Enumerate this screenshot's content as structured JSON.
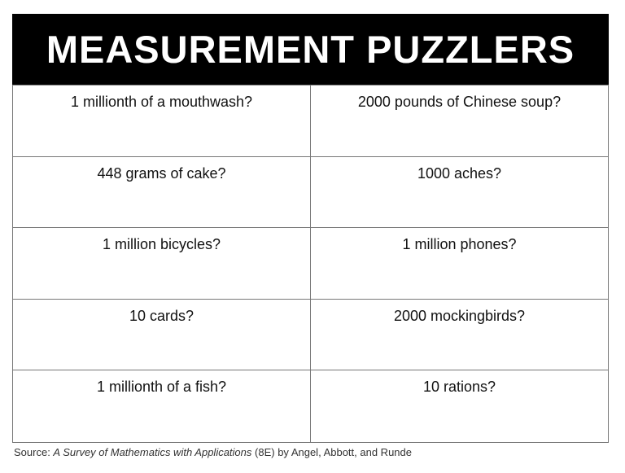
{
  "title": "MEASUREMENT PUZZLERS",
  "puzzles": [
    "1 millionth of a mouthwash?",
    "2000 pounds of Chinese soup?",
    "448 grams of cake?",
    "1000 aches?",
    "1 million bicycles?",
    "1 million phones?",
    "10 cards?",
    "2000 mockingbirds?",
    "1 millionth of a fish?",
    "10 rations?"
  ],
  "source": {
    "prefix": "Source: ",
    "book_title": "A Survey of Mathematics with Applications",
    "suffix": " (8E) by Angel, Abbott, and Runde"
  }
}
